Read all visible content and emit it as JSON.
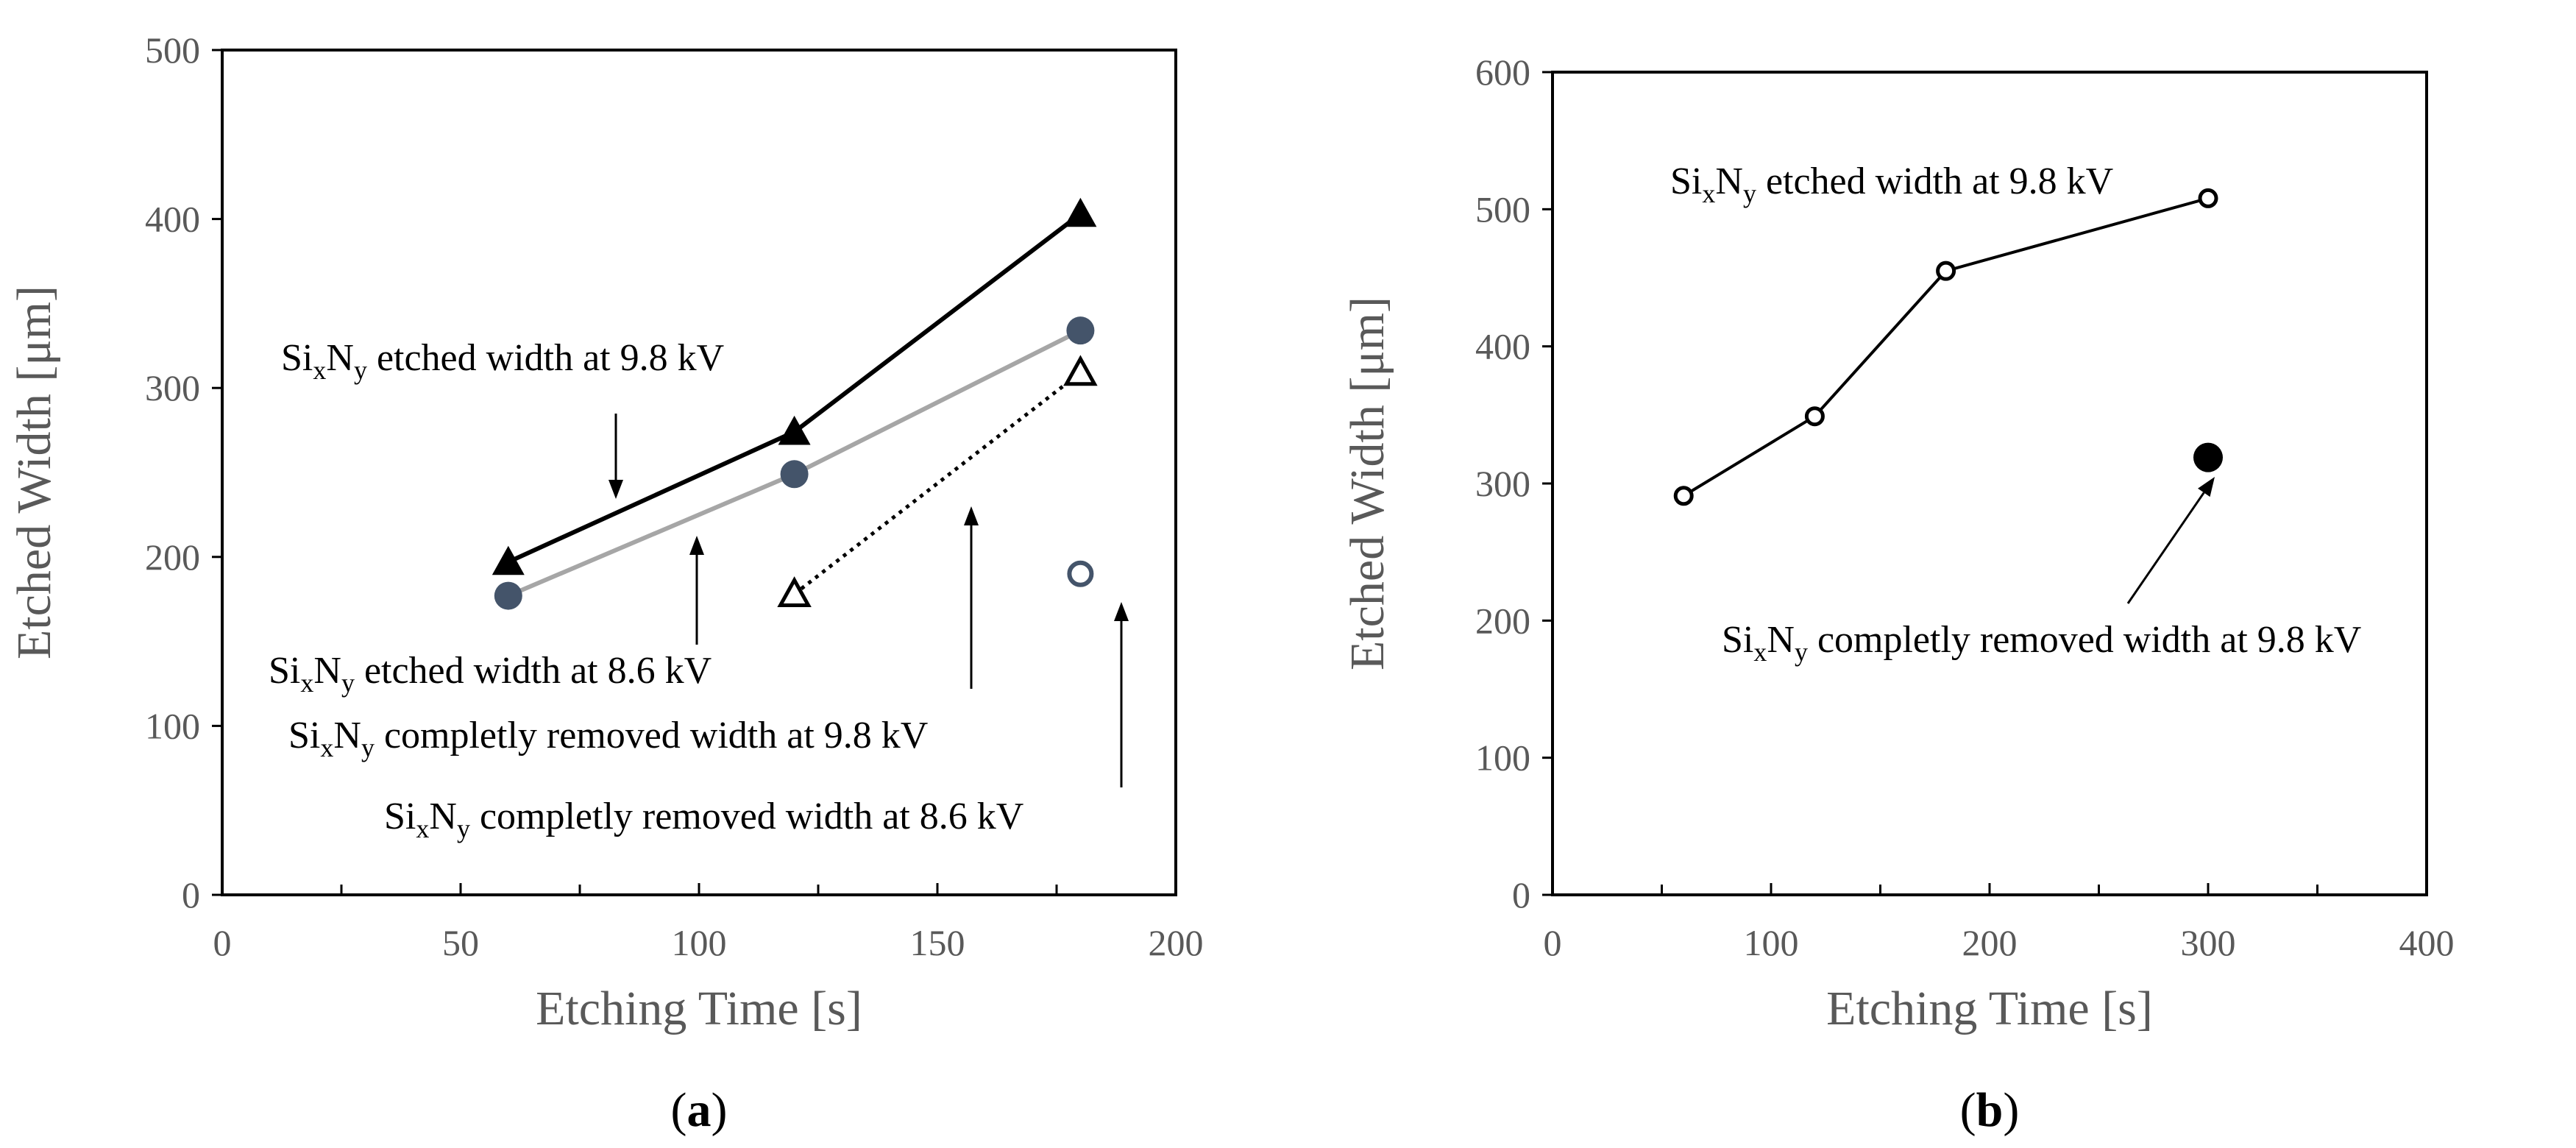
{
  "chart_data": [
    {
      "panel_label": "(a)",
      "panel_letter": "a",
      "type": "line",
      "xlabel": "Etching Time [s]",
      "ylabel": "Etched Width [μm]",
      "xlim": [
        0,
        200
      ],
      "ylim": [
        0,
        500
      ],
      "x_ticks": [
        0,
        50,
        100,
        150,
        200
      ],
      "y_ticks": [
        0,
        100,
        200,
        300,
        400,
        500
      ],
      "grid": false,
      "series": [
        {
          "name": "SixNy etched width at 9.8 kV",
          "x": [
            60,
            120,
            180
          ],
          "y": [
            197,
            274,
            403
          ],
          "marker": "filled-triangle",
          "line": "solid",
          "color": "#000000"
        },
        {
          "name": "SixNy etched width at 8.6 kV",
          "x": [
            60,
            120,
            180
          ],
          "y": [
            177,
            249,
            334
          ],
          "marker": "filled-circle",
          "line": "solid",
          "color": "#a6a6a6",
          "marker_color": "#44546a"
        },
        {
          "name": "SixNy completly removed width at 9.8 kV",
          "x": [
            120,
            180
          ],
          "y": [
            178,
            309
          ],
          "marker": "open-triangle",
          "line": "dotted",
          "color": "#000000"
        },
        {
          "name": "SixNy completly removed width at 8.6 kV",
          "x": [
            180
          ],
          "y": [
            190
          ],
          "marker": "open-circle",
          "line": "none",
          "color": "#44546a"
        }
      ],
      "annotations": [
        {
          "base": "Si",
          "sub1": "x",
          "mid": "N",
          "sub2": "y",
          "rest": " etched width at 9.8 kV"
        },
        {
          "base": "Si",
          "sub1": "x",
          "mid": "N",
          "sub2": "y",
          "rest": " etched width at 8.6 kV"
        },
        {
          "base": "Si",
          "sub1": "x",
          "mid": "N",
          "sub2": "y",
          "rest": " completly removed width at 9.8 kV"
        },
        {
          "base": "Si",
          "sub1": "x",
          "mid": "N",
          "sub2": "y",
          "rest": " completly removed width at 8.6 kV"
        }
      ]
    },
    {
      "panel_label": "(b)",
      "panel_letter": "b",
      "type": "line",
      "xlabel": "Etching Time [s]",
      "ylabel": "Etched Width [μm]",
      "xlim": [
        0,
        400
      ],
      "ylim": [
        0,
        600
      ],
      "x_ticks": [
        0,
        100,
        200,
        300,
        400
      ],
      "y_ticks": [
        0,
        100,
        200,
        300,
        400,
        500,
        600
      ],
      "grid": false,
      "series": [
        {
          "name": "SixNy etched width at 9.8 kV",
          "x": [
            60,
            120,
            180,
            300
          ],
          "y": [
            291,
            349,
            455,
            508
          ],
          "marker": "open-circle-small",
          "line": "solid",
          "color": "#000000"
        },
        {
          "name": "SixNy completly removed width at 9.8 kV",
          "x": [
            300
          ],
          "y": [
            319
          ],
          "marker": "filled-circle-black",
          "line": "none",
          "color": "#000000"
        }
      ],
      "annotations": [
        {
          "base": "Si",
          "sub1": "x",
          "mid": "N",
          "sub2": "y",
          "rest": " etched width at 9.8 kV"
        },
        {
          "base": "Si",
          "sub1": "x",
          "mid": "N",
          "sub2": "y",
          "rest": " completly removed width at 9.8 kV"
        }
      ]
    }
  ]
}
